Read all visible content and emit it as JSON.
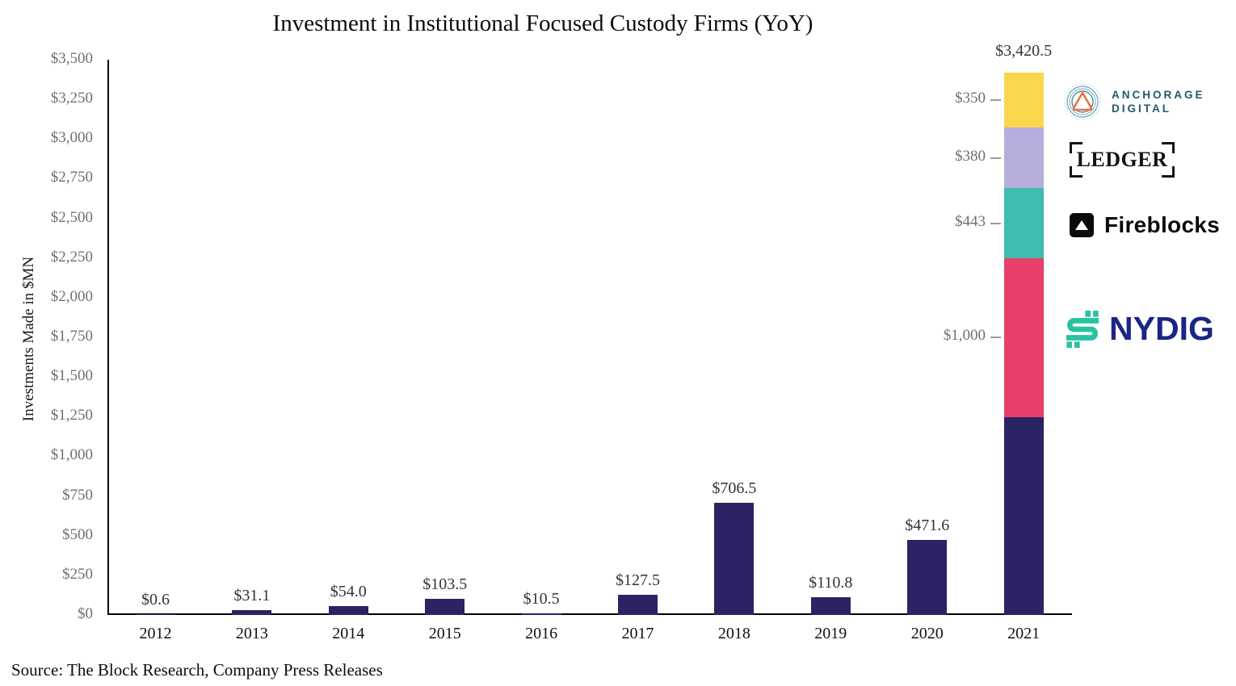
{
  "title": "Investment in Institutional Focused Custody Firms (YoY)",
  "source_note": "Source: The Block Research, Company Press Releases",
  "chart_data": {
    "type": "bar",
    "title": "Investment in Institutional Focused Custody Firms (YoY)",
    "xlabel": "",
    "ylabel": "Investments Made in $MN",
    "ylim": [
      0,
      3500
    ],
    "ytick_interval": 250,
    "ytick_values": [
      0,
      250,
      500,
      750,
      1000,
      1250,
      1500,
      1750,
      2000,
      2250,
      2500,
      2750,
      3000,
      3250,
      3500
    ],
    "ytick_labels": [
      "$0",
      "$250",
      "$500",
      "$750",
      "$1,000",
      "$1,250",
      "$1,500",
      "$1,750",
      "$2,000",
      "$2,250",
      "$2,500",
      "$2,750",
      "$3,000",
      "$3,250",
      "$3,500"
    ],
    "grid": false,
    "legend_position": "none",
    "categories": [
      "2012",
      "2013",
      "2014",
      "2015",
      "2016",
      "2017",
      "2018",
      "2019",
      "2020",
      "2021"
    ],
    "values": [
      0.6,
      31.1,
      54.0,
      103.5,
      10.5,
      127.5,
      706.5,
      110.8,
      471.6,
      3420.5
    ],
    "value_labels": [
      "$0.6",
      "$31.1",
      "$54.0",
      "$103.5",
      "$10.5",
      "$127.5",
      "$706.5",
      "$110.8",
      "$471.6",
      "$3,420.5"
    ],
    "bar_color": "#2B2364",
    "stack": {
      "category": "2021",
      "total": 3420.5,
      "total_label": "$3,420.5",
      "segments_bottom_to_top": [
        {
          "name": "",
          "value": 1247.5,
          "color": "#2B2364",
          "callout": ""
        },
        {
          "name": "NYDIG",
          "value": 1000,
          "color": "#E8406A",
          "callout": "$1,000"
        },
        {
          "name": "Fireblocks",
          "value": 443,
          "color": "#3EBCAE",
          "callout": "$443"
        },
        {
          "name": "Ledger",
          "value": 380,
          "color": "#B7ADDC",
          "callout": "$380"
        },
        {
          "name": "Anchorage Digital",
          "value": 350,
          "color": "#F8D74E",
          "callout": "$350"
        }
      ]
    }
  },
  "logos": {
    "anchorage": {
      "line1": "ANCHORAGE",
      "line2": "DIGITAL",
      "text_color": "#215A6C",
      "triangle_color": "#E8714B",
      "ring_color": "#4A8CA0"
    },
    "ledger": {
      "text": "LEDGER",
      "color": "#141414"
    },
    "fireblocks": {
      "text": "Fireblocks",
      "color": "#0B0B0B"
    },
    "nydig": {
      "text": "NYDIG",
      "text_color": "#1B2583",
      "icon_color": "#2AC1A4"
    }
  }
}
